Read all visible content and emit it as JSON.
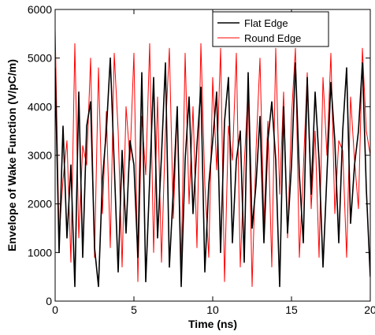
{
  "chart_data": {
    "type": "line",
    "title": "",
    "xlabel": "Time (ns)",
    "ylabel": "Envelope of Wake Function  (V/pC/m)",
    "xlim": [
      0,
      20
    ],
    "ylim": [
      0,
      6000
    ],
    "xticks": [
      0,
      5,
      10,
      15,
      20
    ],
    "yticks": [
      0,
      1000,
      2000,
      3000,
      4000,
      5000,
      6000
    ],
    "xtick_labels": [
      "0",
      "5",
      "10",
      "15",
      "20"
    ],
    "ytick_labels": [
      "0",
      "1000",
      "2000",
      "3000",
      "4000",
      "5000",
      "6000"
    ],
    "grid": false,
    "legend_position": "top-right",
    "series": [
      {
        "name": "Flat Edge",
        "color": "#000000",
        "x": [
          0,
          0.25,
          0.5,
          0.75,
          1.0,
          1.25,
          1.5,
          1.75,
          2.0,
          2.25,
          2.5,
          2.75,
          3.0,
          3.25,
          3.5,
          3.75,
          4.0,
          4.25,
          4.5,
          4.75,
          5.0,
          5.25,
          5.5,
          5.75,
          6.0,
          6.25,
          6.5,
          6.75,
          7.0,
          7.25,
          7.5,
          7.75,
          8.0,
          8.25,
          8.5,
          8.75,
          9.0,
          9.25,
          9.5,
          9.75,
          10.0,
          10.25,
          10.5,
          10.75,
          11.0,
          11.25,
          11.5,
          11.75,
          12.0,
          12.25,
          12.5,
          12.75,
          13.0,
          13.25,
          13.5,
          13.75,
          14.0,
          14.25,
          14.5,
          14.75,
          15.0,
          15.25,
          15.5,
          15.75,
          16.0,
          16.25,
          16.5,
          16.75,
          17.0,
          17.25,
          17.5,
          17.75,
          18.0,
          18.25,
          18.5,
          18.75,
          19.0,
          19.25,
          19.5,
          19.75,
          20.0
        ],
        "y": [
          4800,
          1000,
          3600,
          1300,
          2800,
          300,
          4300,
          900,
          3600,
          4100,
          1100,
          300,
          2500,
          3500,
          5000,
          2800,
          600,
          3100,
          1400,
          3300,
          2800,
          900,
          4700,
          400,
          2500,
          4600,
          1300,
          3000,
          4900,
          700,
          2300,
          4000,
          300,
          2900,
          4200,
          1800,
          3200,
          4400,
          600,
          2400,
          3300,
          4300,
          1000,
          3700,
          4600,
          1200,
          2900,
          3500,
          800,
          4700,
          1500,
          2400,
          3800,
          1200,
          3300,
          4100,
          2900,
          300,
          4000,
          1400,
          2800,
          4900,
          2600,
          1200,
          4600,
          2200,
          4300,
          2900,
          700,
          2600,
          4500,
          3300,
          1200,
          3500,
          4800,
          1600,
          2800,
          3500,
          4900,
          2300,
          500
        ]
      },
      {
        "name": "Round Edge",
        "color": "#ff0000",
        "x": [
          0,
          0.25,
          0.5,
          0.75,
          1.0,
          1.25,
          1.5,
          1.75,
          2.0,
          2.25,
          2.5,
          2.75,
          3.0,
          3.25,
          3.5,
          3.75,
          4.0,
          4.25,
          4.5,
          4.75,
          5.0,
          5.25,
          5.5,
          5.75,
          6.0,
          6.25,
          6.5,
          6.75,
          7.0,
          7.25,
          7.5,
          7.75,
          8.0,
          8.25,
          8.5,
          8.75,
          9.0,
          9.25,
          9.5,
          9.75,
          10.0,
          10.25,
          10.5,
          10.75,
          11.0,
          11.25,
          11.5,
          11.75,
          12.0,
          12.25,
          12.5,
          12.75,
          13.0,
          13.25,
          13.5,
          13.75,
          14.0,
          14.25,
          14.5,
          14.75,
          15.0,
          15.25,
          15.5,
          15.75,
          16.0,
          16.25,
          16.5,
          16.75,
          17.0,
          17.25,
          17.5,
          17.75,
          18.0,
          18.25,
          18.5,
          18.75,
          19.0,
          19.25,
          19.5,
          19.75,
          20.0
        ],
        "y": [
          5600,
          1300,
          2500,
          3300,
          800,
          5300,
          1300,
          3200,
          2800,
          5000,
          900,
          4800,
          1800,
          3900,
          1100,
          5100,
          3500,
          700,
          4000,
          2900,
          5100,
          400,
          3800,
          2600,
          5300,
          1000,
          4200,
          800,
          3500,
          5200,
          1700,
          3900,
          700,
          5100,
          2000,
          4000,
          1100,
          5300,
          2400,
          900,
          4600,
          2700,
          5200,
          400,
          3600,
          2900,
          5100,
          700,
          2800,
          4400,
          300,
          3100,
          5000,
          1600,
          3700,
          700,
          5200,
          2200,
          4300,
          1300,
          3800,
          5200,
          900,
          2700,
          4700,
          1900,
          3500,
          900,
          4600,
          3000,
          5100,
          1800,
          3300,
          3100,
          900,
          4200,
          2900,
          1900,
          5200,
          3500,
          3000
        ]
      }
    ]
  }
}
